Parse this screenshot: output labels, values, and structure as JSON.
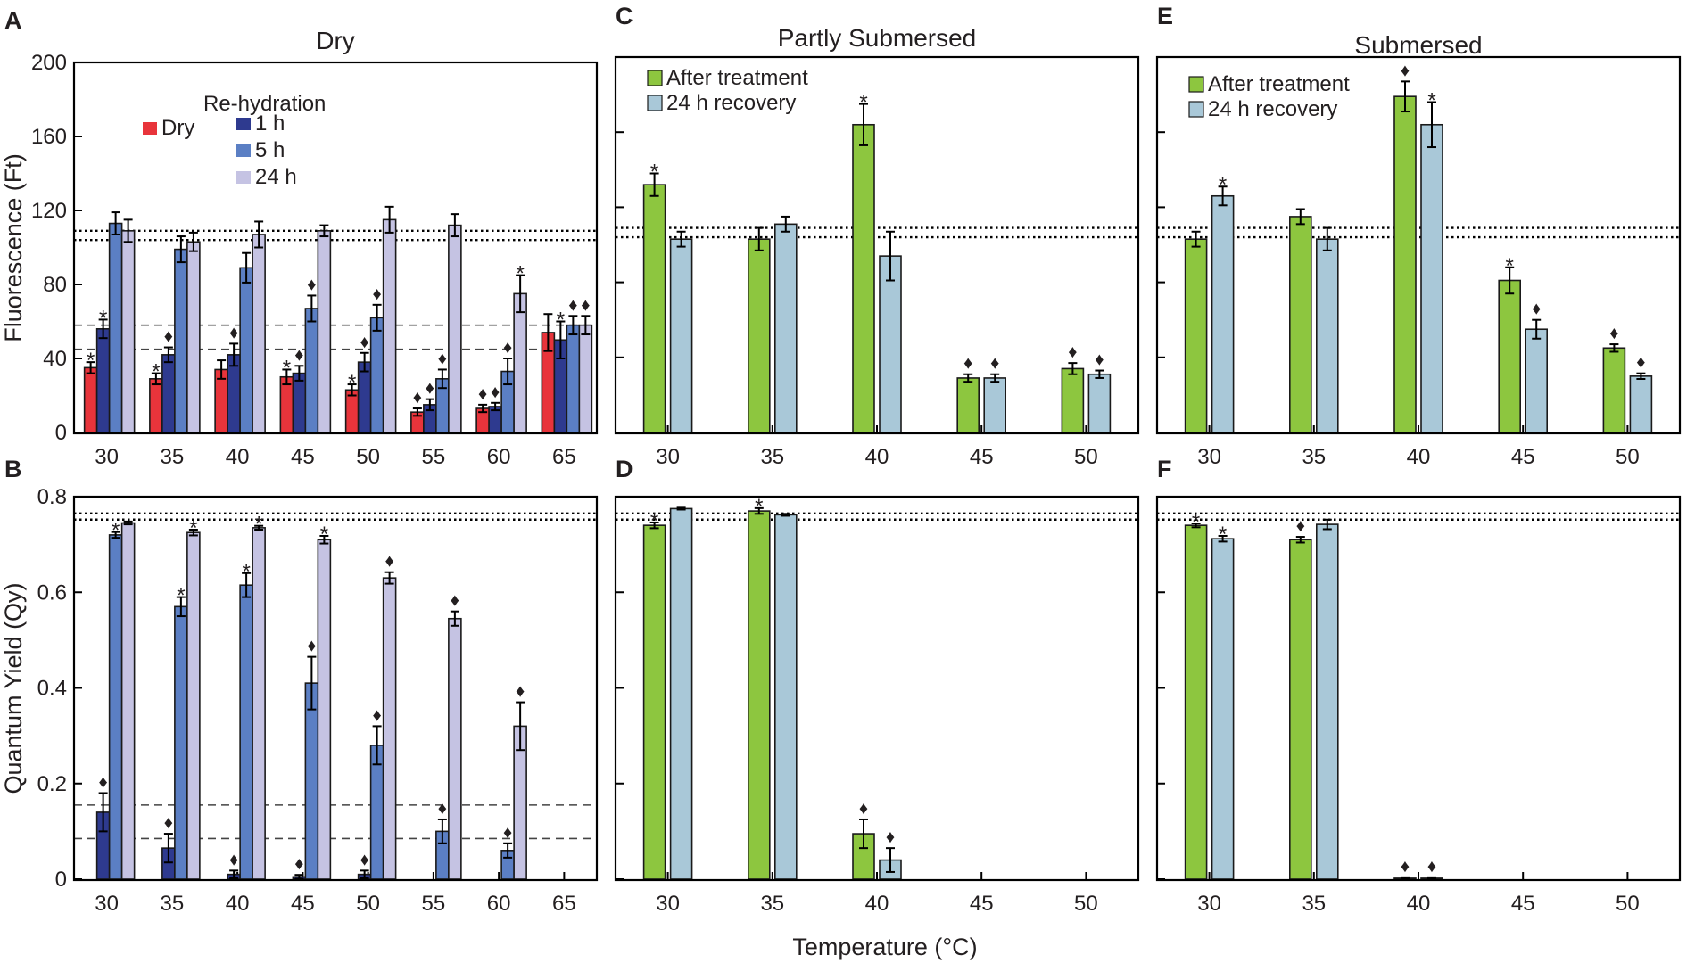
{
  "figure": {
    "x_axis_title": "Temperature (°C)"
  },
  "chart_data": [
    {
      "panel": "A",
      "type": "bar",
      "title": "Dry",
      "ylabel": "Fluorescence (Ft)",
      "xlabel": "Temperature (°C)",
      "ylim": [
        0,
        200
      ],
      "yticks": [
        0,
        40,
        80,
        120,
        160,
        200
      ],
      "categories": [
        "30",
        "35",
        "40",
        "45",
        "50",
        "55",
        "60",
        "65"
      ],
      "legend": {
        "heading": "Re-hydration",
        "placement": "top-left"
      },
      "series": [
        {
          "name": "Dry",
          "color": "#e8343b",
          "values": [
            35,
            29,
            34,
            30,
            23,
            11,
            13,
            54
          ],
          "errors": [
            3,
            3,
            5,
            4,
            3,
            2,
            2,
            10
          ],
          "markers": [
            "*",
            "*",
            "",
            "*",
            "*",
            "♦",
            "♦",
            ""
          ]
        },
        {
          "name": "1 h",
          "color": "#2e3a8f",
          "values": [
            56,
            42,
            42,
            32,
            38,
            15,
            14,
            50
          ],
          "errors": [
            5,
            4,
            6,
            4,
            5,
            3,
            2,
            10
          ],
          "markers": [
            "*",
            "♦",
            "♦",
            "♦",
            "♦",
            "♦",
            "♦",
            "*"
          ]
        },
        {
          "name": "5 h",
          "color": "#5b7fc4",
          "values": [
            113,
            99,
            89,
            67,
            62,
            29,
            33,
            58
          ],
          "errors": [
            6,
            7,
            8,
            7,
            7,
            5,
            7,
            5
          ],
          "markers": [
            "",
            "",
            "",
            "♦",
            "♦",
            "♦",
            "♦",
            "♦"
          ]
        },
        {
          "name": "24 h",
          "color": "#c5c3e3",
          "values": [
            109,
            103,
            107,
            109,
            115,
            112,
            75,
            58
          ],
          "errors": [
            6,
            5,
            7,
            3,
            7,
            6,
            10,
            5
          ],
          "markers": [
            "",
            "",
            "",
            "",
            "",
            "",
            "*",
            "♦"
          ]
        }
      ],
      "reference_dotted": [
        104,
        109
      ],
      "reference_dashed": [
        45,
        58
      ]
    },
    {
      "panel": "B",
      "type": "bar",
      "title": "",
      "ylabel": "Quantum Yield (Qy)",
      "xlabel": "Temperature (°C)",
      "ylim": [
        0,
        0.8
      ],
      "yticks": [
        0,
        0.2,
        0.4,
        0.6,
        0.8
      ],
      "ytick_labels": [
        "0",
        "0.2",
        "0.4",
        "0.6",
        "0.8"
      ],
      "categories": [
        "30",
        "35",
        "40",
        "45",
        "50",
        "55",
        "60",
        "65"
      ],
      "series": [
        {
          "name": "1 h",
          "color": "#2e3a8f",
          "values": [
            0.14,
            0.065,
            0.01,
            0.005,
            0.01,
            0,
            0,
            0
          ],
          "errors": [
            0.04,
            0.03,
            0.008,
            0.004,
            0.008,
            0,
            0,
            0
          ],
          "markers": [
            "♦",
            "♦",
            "♦",
            "♦",
            "♦",
            "",
            "",
            ""
          ]
        },
        {
          "name": "5 h",
          "color": "#5b7fc4",
          "values": [
            0.72,
            0.57,
            0.615,
            0.41,
            0.28,
            0.1,
            0.06,
            0
          ],
          "errors": [
            0.006,
            0.02,
            0.025,
            0.055,
            0.04,
            0.025,
            0.015,
            0
          ],
          "markers": [
            "*",
            "*",
            "*",
            "♦",
            "♦",
            "♦",
            "♦",
            ""
          ]
        },
        {
          "name": "24 h",
          "color": "#c5c3e3",
          "values": [
            0.745,
            0.725,
            0.735,
            0.71,
            0.63,
            0.545,
            0.32,
            0
          ],
          "errors": [
            0.003,
            0.006,
            0.004,
            0.008,
            0.012,
            0.015,
            0.05,
            0
          ],
          "markers": [
            "",
            "*",
            "*",
            "*",
            "♦",
            "♦",
            "♦",
            ""
          ]
        }
      ],
      "reference_dotted": [
        0.752,
        0.765
      ],
      "reference_dashed": [
        0.085,
        0.155
      ]
    },
    {
      "panel": "C",
      "type": "bar",
      "title": "Partly Submersed",
      "ylabel": "",
      "xlabel": "Temperature (°C)",
      "ylim": [
        0,
        200
      ],
      "yticks": [
        0,
        40,
        80,
        120,
        160,
        200
      ],
      "categories": [
        "30",
        "35",
        "40",
        "45",
        "50"
      ],
      "legend": {
        "placement": "top-left"
      },
      "series": [
        {
          "name": "After treatment",
          "color": "#8dc63f",
          "values": [
            132,
            103,
            164,
            29,
            34
          ],
          "errors": [
            6,
            6,
            11,
            2,
            3
          ],
          "markers": [
            "*",
            "",
            "*",
            "♦",
            "♦"
          ]
        },
        {
          "name": "24 h recovery",
          "color": "#a9c8d8",
          "values": [
            103,
            111,
            94,
            29,
            31
          ],
          "errors": [
            4,
            4,
            13,
            2,
            2
          ],
          "markers": [
            "",
            "",
            "",
            "♦",
            "♦"
          ]
        }
      ],
      "reference_dotted": [
        104,
        109
      ]
    },
    {
      "panel": "D",
      "type": "bar",
      "title": "",
      "ylabel": "",
      "xlabel": "Temperature (°C)",
      "ylim": [
        0,
        0.8
      ],
      "yticks": [
        0,
        0.2,
        0.4,
        0.6,
        0.8
      ],
      "categories": [
        "30",
        "35",
        "40",
        "45",
        "50"
      ],
      "series": [
        {
          "name": "After treatment",
          "color": "#8dc63f",
          "values": [
            0.74,
            0.77,
            0.095,
            0,
            0
          ],
          "errors": [
            0.006,
            0.006,
            0.03,
            0,
            0
          ],
          "markers": [
            "*",
            "*",
            "♦",
            "",
            ""
          ]
        },
        {
          "name": "24 h recovery",
          "color": "#a9c8d8",
          "values": [
            0.775,
            0.762,
            0.04,
            0,
            0
          ],
          "errors": [
            0.002,
            0.002,
            0.025,
            0,
            0
          ],
          "markers": [
            "",
            "",
            "♦",
            "",
            ""
          ]
        }
      ],
      "reference_dotted": [
        0.752,
        0.765
      ]
    },
    {
      "panel": "E",
      "type": "bar",
      "title": "Submersed",
      "ylabel": "",
      "xlabel": "Temperature (°C)",
      "ylim": [
        0,
        200
      ],
      "yticks": [
        0,
        40,
        80,
        120,
        160,
        200
      ],
      "categories": [
        "30",
        "35",
        "40",
        "45",
        "50"
      ],
      "legend": {
        "placement": "top-left"
      },
      "series": [
        {
          "name": "After treatment",
          "color": "#8dc63f",
          "values": [
            103,
            115,
            179,
            81,
            45
          ],
          "errors": [
            4,
            4,
            8,
            7,
            2
          ],
          "markers": [
            "",
            "",
            "♦",
            "*",
            "♦"
          ]
        },
        {
          "name": "24 h recovery",
          "color": "#a9c8d8",
          "values": [
            126,
            103,
            164,
            55,
            30
          ],
          "errors": [
            5,
            6,
            12,
            5,
            1.5
          ],
          "markers": [
            "*",
            "",
            "*",
            "♦",
            "♦"
          ]
        }
      ],
      "reference_dotted": [
        104,
        109
      ]
    },
    {
      "panel": "F",
      "type": "bar",
      "title": "",
      "ylabel": "",
      "xlabel": "Temperature (°C)",
      "ylim": [
        0,
        0.8
      ],
      "yticks": [
        0,
        0.2,
        0.4,
        0.6,
        0.8
      ],
      "categories": [
        "30",
        "35",
        "40",
        "45",
        "50"
      ],
      "series": [
        {
          "name": "After treatment",
          "color": "#8dc63f",
          "values": [
            0.74,
            0.71,
            0.002,
            0,
            0
          ],
          "errors": [
            0.004,
            0.006,
            0.002,
            0,
            0
          ],
          "markers": [
            "*",
            "♦",
            "♦",
            "",
            ""
          ]
        },
        {
          "name": "24 h recovery",
          "color": "#a9c8d8",
          "values": [
            0.712,
            0.742,
            0.002,
            0,
            0
          ],
          "errors": [
            0.006,
            0.01,
            0.002,
            0,
            0
          ],
          "markers": [
            "*",
            "",
            "♦",
            "",
            ""
          ]
        }
      ],
      "reference_dotted": [
        0.752,
        0.765
      ]
    }
  ]
}
